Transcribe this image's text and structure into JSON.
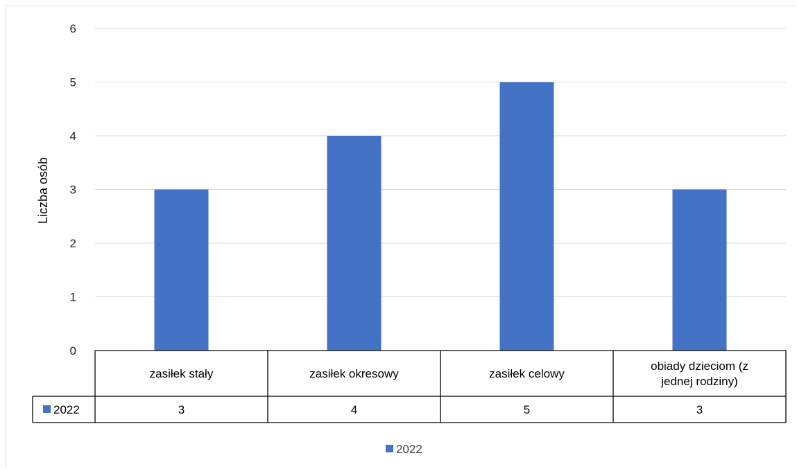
{
  "chart_data": {
    "type": "bar",
    "categories": [
      "zasiłek stały",
      "zasiłek okresowy",
      "zasiłek celowy",
      "obiady dzieciom (z jednej rodziny)"
    ],
    "category_lines": [
      [
        "zasiłek stały"
      ],
      [
        "zasiłek okresowy"
      ],
      [
        "zasiłek celowy"
      ],
      [
        "obiady dzieciom (z",
        "jednej rodziny)"
      ]
    ],
    "series": [
      {
        "name": "2022",
        "values": [
          3,
          4,
          5,
          3
        ],
        "color": "#4472c4"
      }
    ],
    "ylabel": "Liczba osób",
    "ylim": [
      0,
      6
    ],
    "yticks": [
      "0",
      "1",
      "2",
      "3",
      "4",
      "5",
      "6"
    ],
    "grid": true,
    "legend": "bottom",
    "data_table": true,
    "table_values": [
      "3",
      "4",
      "5",
      "3"
    ]
  }
}
